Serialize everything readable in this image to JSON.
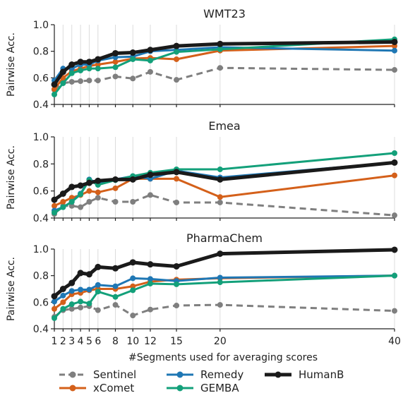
{
  "chart_data": {
    "type": "line",
    "x": [
      1,
      2,
      3,
      4,
      5,
      6,
      8,
      10,
      12,
      15,
      20,
      40
    ],
    "x_tick_labels": [
      "1",
      "2",
      "3",
      "4",
      "5",
      "6",
      "8",
      "10",
      "12",
      "15",
      "20",
      "40"
    ],
    "xlabel": "#Segments used for averaging scores",
    "ylabel": "Pairwise Acc.",
    "ylim": [
      0.4,
      1.0
    ],
    "y_ticks": [
      "0.4",
      "0.6",
      "0.8",
      "1.0"
    ],
    "grid": "vertical lines at x ticks",
    "legend_position": "bottom",
    "legend": [
      {
        "name": "Sentinel",
        "color": "#7f7f7f",
        "style": "dashed"
      },
      {
        "name": "xComet",
        "color": "#d4601a",
        "style": "solid"
      },
      {
        "name": "Remedy",
        "color": "#1f77b4",
        "style": "solid"
      },
      {
        "name": "GEMBA",
        "color": "#13a07a",
        "style": "solid"
      },
      {
        "name": "HumanB",
        "color": "#1a1a1a",
        "style": "solid-bold"
      }
    ],
    "panels": [
      {
        "title": "WMT23",
        "series": [
          {
            "name": "Sentinel",
            "values": [
              0.51,
              0.56,
              0.57,
              0.575,
              0.58,
              0.58,
              0.61,
              0.595,
              0.645,
              0.585,
              0.675,
              0.66
            ]
          },
          {
            "name": "xComet",
            "values": [
              0.515,
              0.6,
              0.65,
              0.67,
              0.69,
              0.7,
              0.72,
              0.745,
              0.75,
              0.74,
              0.805,
              0.84
            ]
          },
          {
            "name": "Remedy",
            "values": [
              0.58,
              0.67,
              0.67,
              0.7,
              0.7,
              0.73,
              0.755,
              0.76,
              0.8,
              0.81,
              0.83,
              0.805
            ]
          },
          {
            "name": "GEMBA",
            "values": [
              0.475,
              0.56,
              0.635,
              0.655,
              0.67,
              0.67,
              0.68,
              0.74,
              0.73,
              0.795,
              0.815,
              0.89
            ]
          },
          {
            "name": "HumanB",
            "values": [
              0.55,
              0.645,
              0.7,
              0.72,
              0.72,
              0.74,
              0.785,
              0.79,
              0.81,
              0.84,
              0.855,
              0.87
            ]
          }
        ]
      },
      {
        "title": "Emea",
        "series": [
          {
            "name": "Sentinel",
            "values": [
              0.43,
              0.49,
              0.49,
              0.48,
              0.52,
              0.55,
              0.52,
              0.52,
              0.57,
              0.515,
              0.515,
              0.42
            ]
          },
          {
            "name": "xComet",
            "values": [
              0.49,
              0.52,
              0.55,
              0.57,
              0.6,
              0.59,
              0.62,
              0.69,
              0.69,
              0.69,
              0.555,
              0.715
            ]
          },
          {
            "name": "Remedy",
            "values": [
              0.455,
              0.48,
              0.52,
              0.58,
              0.685,
              0.66,
              0.685,
              0.71,
              0.69,
              0.75,
              0.7,
              0.81
            ]
          },
          {
            "name": "GEMBA",
            "values": [
              0.44,
              0.48,
              0.52,
              0.575,
              0.68,
              0.645,
              0.68,
              0.71,
              0.735,
              0.76,
              0.76,
              0.88
            ]
          },
          {
            "name": "HumanB",
            "values": [
              0.535,
              0.58,
              0.63,
              0.64,
              0.66,
              0.675,
              0.685,
              0.685,
              0.72,
              0.74,
              0.685,
              0.81
            ]
          }
        ]
      },
      {
        "title": "PharmaChem",
        "series": [
          {
            "name": "Sentinel",
            "values": [
              0.49,
              0.54,
              0.55,
              0.56,
              0.57,
              0.54,
              0.58,
              0.5,
              0.545,
              0.575,
              0.58,
              0.535
            ]
          },
          {
            "name": "xComet",
            "values": [
              0.55,
              0.6,
              0.66,
              0.67,
              0.69,
              0.7,
              0.7,
              0.72,
              0.755,
              0.77,
              0.78,
              0.8
            ]
          },
          {
            "name": "Remedy",
            "values": [
              0.605,
              0.65,
              0.685,
              0.695,
              0.695,
              0.73,
              0.72,
              0.78,
              0.775,
              0.76,
              0.785,
              0.8
            ]
          },
          {
            "name": "GEMBA",
            "values": [
              0.48,
              0.55,
              0.585,
              0.605,
              0.59,
              0.68,
              0.64,
              0.69,
              0.74,
              0.735,
              0.75,
              0.8
            ]
          },
          {
            "name": "HumanB",
            "values": [
              0.645,
              0.7,
              0.745,
              0.82,
              0.81,
              0.865,
              0.855,
              0.9,
              0.885,
              0.87,
              0.965,
              0.995
            ]
          }
        ]
      }
    ]
  }
}
